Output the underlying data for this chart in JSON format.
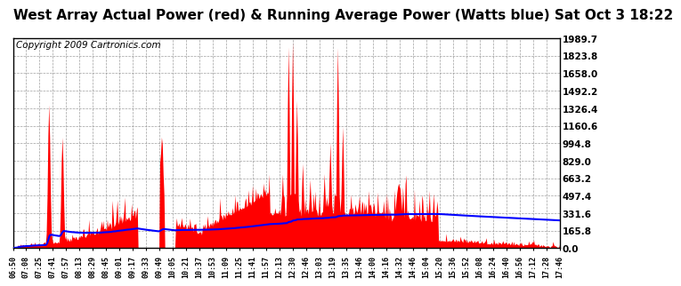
{
  "title": "West Array Actual Power (red) & Running Average Power (Watts blue) Sat Oct 3 18:22",
  "copyright": "Copyright 2009 Cartronics.com",
  "yticks": [
    0.0,
    165.8,
    331.6,
    497.4,
    663.2,
    829.0,
    994.8,
    1160.6,
    1326.4,
    1492.2,
    1658.0,
    1823.8,
    1989.7
  ],
  "ymax": 1989.7,
  "ymin": 0.0,
  "bg_color": "#ffffff",
  "plot_bg": "#ffffff",
  "grid_color": "#888888",
  "fill_color": "#ff0000",
  "avg_color": "#0000ff",
  "title_fontsize": 11,
  "copyright_fontsize": 7.5,
  "xtick_labels": [
    "06:50",
    "07:08",
    "07:25",
    "07:41",
    "07:57",
    "08:13",
    "08:29",
    "08:45",
    "09:01",
    "09:17",
    "09:33",
    "09:49",
    "10:05",
    "10:21",
    "10:37",
    "10:53",
    "11:09",
    "11:25",
    "11:41",
    "11:57",
    "12:13",
    "12:30",
    "12:46",
    "13:03",
    "13:19",
    "13:35",
    "13:46",
    "14:00",
    "14:16",
    "14:32",
    "14:46",
    "15:04",
    "15:20",
    "15:36",
    "15:52",
    "16:08",
    "16:24",
    "16:40",
    "16:56",
    "17:12",
    "17:28",
    "17:46"
  ]
}
